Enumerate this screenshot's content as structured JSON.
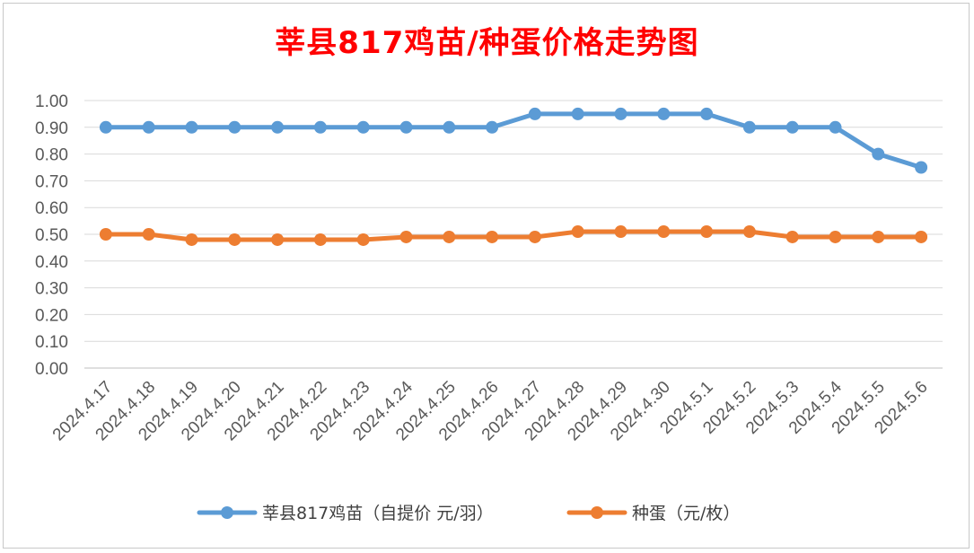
{
  "chart_data": {
    "type": "line",
    "title": "莘县817鸡苗/种蛋价格走势图",
    "categories": [
      "2024.4.17",
      "2024.4.18",
      "2024.4.19",
      "2024.4.20",
      "2024.4.21",
      "2024.4.22",
      "2024.4.23",
      "2024.4.24",
      "2024.4.25",
      "2024.4.26",
      "2024.4.27",
      "2024.4.28",
      "2024.4.29",
      "2024.4.30",
      "2024.5.1",
      "2024.5.2",
      "2024.5.3",
      "2024.5.4",
      "2024.5.5",
      "2024.5.6"
    ],
    "series": [
      {
        "name": "莘县817鸡苗（自提价 元/羽）",
        "color": "#5b9bd5",
        "values": [
          0.9,
          0.9,
          0.9,
          0.9,
          0.9,
          0.9,
          0.9,
          0.9,
          0.9,
          0.9,
          0.95,
          0.95,
          0.95,
          0.95,
          0.95,
          0.9,
          0.9,
          0.9,
          0.8,
          0.75
        ]
      },
      {
        "name": "种蛋（元/枚）",
        "color": "#ed7d31",
        "values": [
          0.5,
          0.5,
          0.48,
          0.48,
          0.48,
          0.48,
          0.48,
          0.49,
          0.49,
          0.49,
          0.49,
          0.51,
          0.51,
          0.51,
          0.51,
          0.51,
          0.49,
          0.49,
          0.49,
          0.49
        ]
      }
    ],
    "ylim": [
      0,
      1.0
    ],
    "yticks": [
      "0.00",
      "0.10",
      "0.20",
      "0.30",
      "0.40",
      "0.50",
      "0.60",
      "0.70",
      "0.80",
      "0.90",
      "1.00"
    ],
    "grid": true,
    "legend": "bottom"
  }
}
